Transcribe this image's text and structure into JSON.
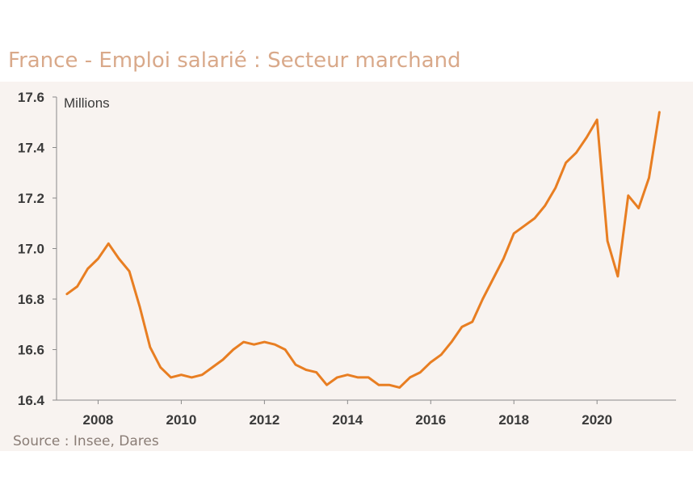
{
  "header": {
    "title": "France - Emploi salarié : Secteur marchand"
  },
  "footer": {
    "source": "Source : Insee, Dares"
  },
  "chart_data": {
    "type": "line",
    "title": "France - Emploi salarié : Secteur marchand",
    "ylabel": "Millions",
    "xlabel": "",
    "ylim": [
      16.4,
      17.6
    ],
    "xlim": [
      2007.0,
      2021.9
    ],
    "yticks": [
      16.4,
      16.6,
      16.8,
      17.0,
      17.2,
      17.4,
      17.6
    ],
    "ytick_labels": [
      "16.4",
      "16.6",
      "16.8",
      "17.0",
      "17.2",
      "17.4",
      "17.6"
    ],
    "xticks": [
      2008,
      2010,
      2012,
      2014,
      2016,
      2018,
      2020
    ],
    "xtick_labels": [
      "2008",
      "2010",
      "2012",
      "2014",
      "2016",
      "2018",
      "2020"
    ],
    "grid": false,
    "color": "#e87e22",
    "series": [
      {
        "x": [
          2007.25,
          2007.5,
          2007.75,
          2008.0,
          2008.25,
          2008.5,
          2008.75,
          2009.0,
          2009.25,
          2009.5,
          2009.75,
          2010.0,
          2010.25,
          2010.5,
          2010.75,
          2011.0,
          2011.25,
          2011.5,
          2011.75,
          2012.0,
          2012.25,
          2012.5,
          2012.75,
          2013.0,
          2013.25,
          2013.5,
          2013.75,
          2014.0,
          2014.25,
          2014.5,
          2014.75,
          2015.0,
          2015.25,
          2015.5,
          2015.75,
          2016.0,
          2016.25,
          2016.5,
          2016.75,
          2017.0,
          2017.25,
          2017.5,
          2017.75,
          2018.0,
          2018.25,
          2018.5,
          2018.75,
          2019.0,
          2019.25,
          2019.5,
          2019.75,
          2020.0,
          2020.25,
          2020.5,
          2020.75,
          2021.0,
          2021.25,
          2021.5
        ],
        "values": [
          16.82,
          16.85,
          16.92,
          16.96,
          17.02,
          16.96,
          16.91,
          16.77,
          16.61,
          16.53,
          16.49,
          16.5,
          16.49,
          16.5,
          16.53,
          16.56,
          16.6,
          16.63,
          16.62,
          16.63,
          16.62,
          16.6,
          16.54,
          16.52,
          16.51,
          16.46,
          16.49,
          16.5,
          16.49,
          16.49,
          16.46,
          16.46,
          16.45,
          16.49,
          16.51,
          16.55,
          16.58,
          16.63,
          16.69,
          16.71,
          16.8,
          16.88,
          16.96,
          17.06,
          17.09,
          17.12,
          17.17,
          17.24,
          17.34,
          17.38,
          17.44,
          17.51,
          17.03,
          16.89,
          17.21,
          17.16,
          17.28,
          17.54
        ]
      }
    ]
  }
}
